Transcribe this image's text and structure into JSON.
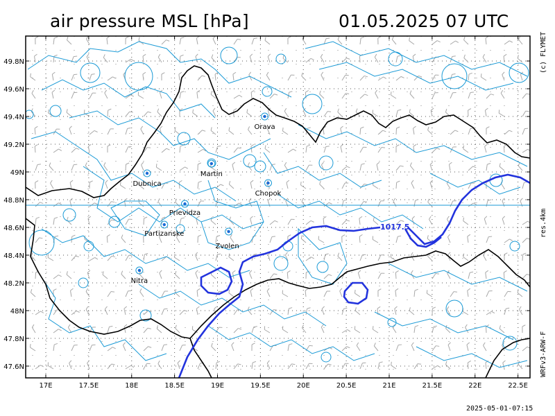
{
  "header": {
    "title": "air pressure MSL [hPa]",
    "datetime": "01.05.2025   07 UTC"
  },
  "side_labels": {
    "copyright": "(c) FLYMET",
    "resolution": "res.4km",
    "model": "WRFv3-ARW-F"
  },
  "footer": {
    "timestamp": "2025-05-01-07:15"
  },
  "map": {
    "lat_ticks": [
      {
        "label": "49.8N",
        "value": 49.8
      },
      {
        "label": "49.6N",
        "value": 49.6
      },
      {
        "label": "49.4N",
        "value": 49.4
      },
      {
        "label": "49.2N",
        "value": 49.2
      },
      {
        "label": "49N",
        "value": 49.0
      },
      {
        "label": "48.8N",
        "value": 48.8
      },
      {
        "label": "48.6N",
        "value": 48.6
      },
      {
        "label": "48.4N",
        "value": 48.4
      },
      {
        "label": "48.2N",
        "value": 48.2
      },
      {
        "label": "48N",
        "value": 48.0
      },
      {
        "label": "47.8N",
        "value": 47.8
      },
      {
        "label": "47.6N",
        "value": 47.6
      }
    ],
    "lon_ticks": [
      {
        "label": "17E",
        "value": 17.0
      },
      {
        "label": "17.5E",
        "value": 17.5
      },
      {
        "label": "18E",
        "value": 18.0
      },
      {
        "label": "18.5E",
        "value": 18.5
      },
      {
        "label": "19E",
        "value": 19.0
      },
      {
        "label": "19.5E",
        "value": 19.5
      },
      {
        "label": "20E",
        "value": 20.0
      },
      {
        "label": "20.5E",
        "value": 20.5
      },
      {
        "label": "21E",
        "value": 21.0
      },
      {
        "label": "21.5E",
        "value": 21.5
      },
      {
        "label": "22E",
        "value": 22.0
      },
      {
        "label": "22.5E",
        "value": 22.5
      }
    ],
    "cities": [
      {
        "name": "Orava",
        "lon": 19.55,
        "lat": 49.4
      },
      {
        "name": "Dubnica",
        "lon": 18.18,
        "lat": 48.99
      },
      {
        "name": "Martin",
        "lon": 18.93,
        "lat": 49.06
      },
      {
        "name": "Chopok",
        "lon": 19.59,
        "lat": 48.92
      },
      {
        "name": "Prievidza",
        "lon": 18.62,
        "lat": 48.77
      },
      {
        "name": "Partizanske",
        "lon": 18.38,
        "lat": 48.62
      },
      {
        "name": "Zvolen",
        "lon": 19.13,
        "lat": 48.57
      },
      {
        "name": "Nitra",
        "lon": 18.09,
        "lat": 48.29
      }
    ],
    "isobar_label": "1017.5",
    "colors": {
      "isobar": "#2233dd",
      "terrain": "#1a9ad6",
      "border": "#000000",
      "barb": "#aaaaaa",
      "grid": "#555555"
    }
  }
}
